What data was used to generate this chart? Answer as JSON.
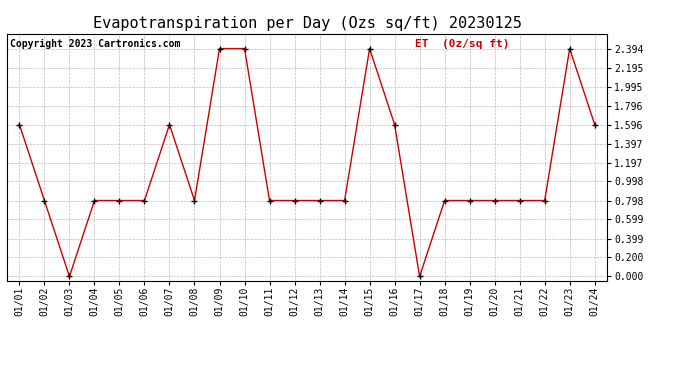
{
  "title": "Evapotranspiration per Day (Ozs sq/ft) 20230125",
  "copyright": "Copyright 2023 Cartronics.com",
  "legend_label": "ET  (0z/sq ft)",
  "x_labels": [
    "01/01",
    "01/02",
    "01/03",
    "01/04",
    "01/05",
    "01/06",
    "01/07",
    "01/08",
    "01/09",
    "01/10",
    "01/11",
    "01/12",
    "01/13",
    "01/14",
    "01/15",
    "01/16",
    "01/17",
    "01/18",
    "01/19",
    "01/20",
    "01/21",
    "01/22",
    "01/23",
    "01/24"
  ],
  "y_values": [
    1.596,
    0.798,
    0.0,
    0.798,
    0.798,
    0.798,
    1.596,
    0.798,
    2.394,
    2.394,
    0.798,
    0.798,
    0.798,
    0.798,
    2.394,
    1.596,
    0.0,
    0.798,
    0.798,
    0.798,
    0.798,
    0.798,
    2.394,
    1.596
  ],
  "y_ticks": [
    0.0,
    0.2,
    0.399,
    0.599,
    0.798,
    0.998,
    1.197,
    1.397,
    1.596,
    1.796,
    1.995,
    2.195,
    2.394
  ],
  "line_color": "#cc0000",
  "marker_color": "#000000",
  "background_color": "#ffffff",
  "grid_color": "#bbbbbb",
  "title_fontsize": 11,
  "copyright_fontsize": 7,
  "legend_fontsize": 8,
  "tick_fontsize": 7,
  "ylim": [
    -0.05,
    2.55
  ]
}
